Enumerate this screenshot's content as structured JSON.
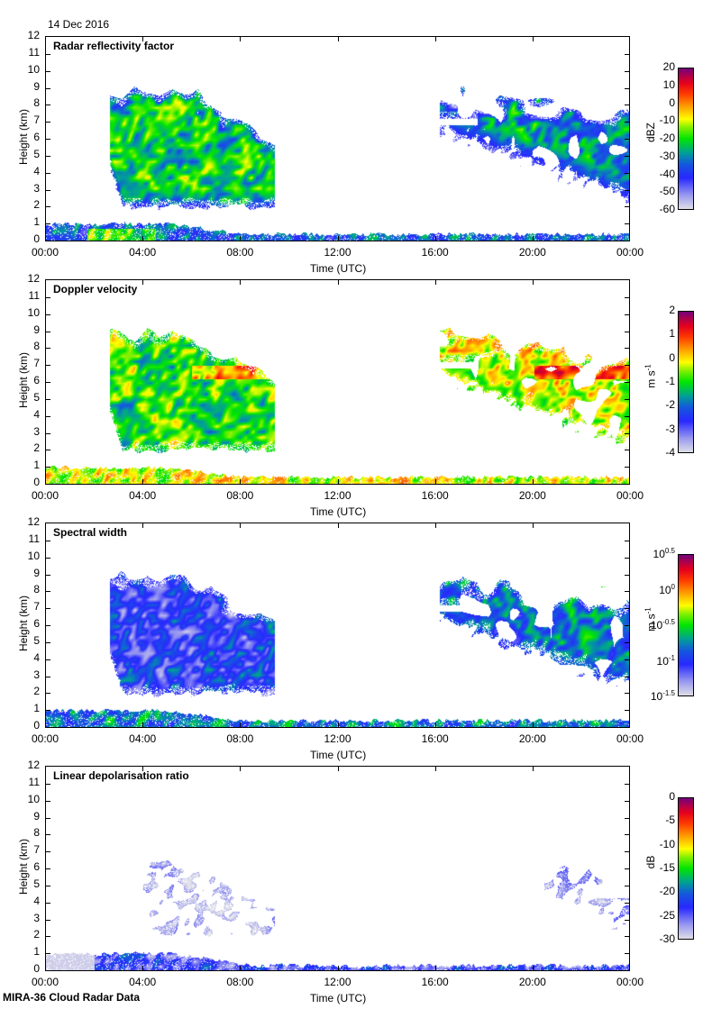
{
  "header": {
    "date": "14 Dec 2016"
  },
  "footer": {
    "title": "MIRA-36 Cloud Radar Data"
  },
  "chart_data": [
    {
      "type": "heatmap",
      "title": "Radar reflectivity factor",
      "xlabel": "Time (UTC)",
      "ylabel": "Height (km)",
      "xticks": [
        "00:00",
        "04:00",
        "08:00",
        "12:00",
        "16:00",
        "20:00",
        "00:00"
      ],
      "xlim_hours": [
        0,
        24
      ],
      "ylim": [
        0,
        12
      ],
      "yticks": [
        "0",
        "1",
        "2",
        "3",
        "4",
        "5",
        "6",
        "7",
        "8",
        "9",
        "10",
        "11",
        "12"
      ],
      "colorbar": {
        "unit": "dBZ",
        "ticks": [
          "20",
          "10",
          "0",
          "-10",
          "-20",
          "-30",
          "-40",
          "-50",
          "-60"
        ],
        "range": [
          -60,
          20
        ]
      },
      "field": "reflectivity",
      "clouds": [
        {
          "t0": 2.6,
          "t1": 9.4,
          "base": 2.0,
          "top": 8.8,
          "value_mean": -22
        },
        {
          "t0": 16.2,
          "t1": 24.0,
          "base_start": 6.5,
          "base_end": 2.5,
          "top": 8.6,
          "value_mean": -30
        }
      ],
      "boundary_layer": {
        "top_start": 1.0,
        "top_min": 0.4,
        "value_mean": -35
      }
    },
    {
      "type": "heatmap",
      "title": "Doppler velocity",
      "xlabel": "Time (UTC)",
      "ylabel": "Height (km)",
      "xticks": [
        "00:00",
        "04:00",
        "08:00",
        "12:00",
        "16:00",
        "20:00",
        "00:00"
      ],
      "xlim_hours": [
        0,
        24
      ],
      "ylim": [
        0,
        12
      ],
      "yticks": [
        "0",
        "1",
        "2",
        "3",
        "4",
        "5",
        "6",
        "7",
        "8",
        "9",
        "10",
        "11",
        "12"
      ],
      "colorbar": {
        "unit": "m s-1",
        "ticks": [
          "2",
          "1",
          "0",
          "-1",
          "-2",
          "-3",
          "-4"
        ],
        "range": [
          -4,
          2
        ]
      },
      "field": "velocity",
      "clouds": [
        {
          "t0": 2.6,
          "t1": 9.4,
          "base": 2.0,
          "top": 8.8,
          "value_mean": -0.9
        },
        {
          "t0": 16.2,
          "t1": 24.0,
          "base_start": 6.5,
          "base_end": 2.5,
          "top": 8.6,
          "value_mean": -0.3
        }
      ],
      "boundary_layer": {
        "top_start": 1.0,
        "top_min": 0.4,
        "value_mean": -0.2
      }
    },
    {
      "type": "heatmap",
      "title": "Spectral width",
      "xlabel": "Time (UTC)",
      "ylabel": "Height (km)",
      "xticks": [
        "00:00",
        "04:00",
        "08:00",
        "12:00",
        "16:00",
        "20:00",
        "00:00"
      ],
      "xlim_hours": [
        0,
        24
      ],
      "ylim": [
        0,
        12
      ],
      "yticks": [
        "0",
        "1",
        "2",
        "3",
        "4",
        "5",
        "6",
        "7",
        "8",
        "9",
        "10",
        "11",
        "12"
      ],
      "colorbar": {
        "unit": "m s-1",
        "ticks_base": "10",
        "ticks_exp": [
          "0.5",
          "0",
          "-0.5",
          "-1",
          "-1.5"
        ],
        "range_log10": [
          -1.5,
          0.5
        ]
      },
      "field": "spectral_width",
      "clouds": [
        {
          "t0": 2.6,
          "t1": 9.4,
          "base": 2.0,
          "top": 8.8,
          "value_mean": -1.05
        },
        {
          "t0": 16.2,
          "t1": 24.0,
          "base_start": 6.5,
          "base_end": 2.5,
          "top": 8.6,
          "value_mean": -0.85
        }
      ],
      "boundary_layer": {
        "top_start": 1.0,
        "top_min": 0.4,
        "value_mean": -0.8
      }
    },
    {
      "type": "heatmap",
      "title": "Linear depolarisation ratio",
      "xlabel": "Time (UTC)",
      "ylabel": "Height (km)",
      "xticks": [
        "00:00",
        "04:00",
        "08:00",
        "12:00",
        "16:00",
        "20:00",
        "00:00"
      ],
      "xlim_hours": [
        0,
        24
      ],
      "ylim": [
        0,
        12
      ],
      "yticks": [
        "0",
        "1",
        "2",
        "3",
        "4",
        "5",
        "6",
        "7",
        "8",
        "9",
        "10",
        "11",
        "12"
      ],
      "colorbar": {
        "unit": "dB",
        "ticks": [
          "0",
          "-5",
          "-10",
          "-15",
          "-20",
          "-25",
          "-30"
        ],
        "range": [
          -30,
          0
        ]
      },
      "field": "ldr",
      "clouds": [
        {
          "t0": 4.0,
          "t1": 9.4,
          "base": 2.2,
          "top": 6.3,
          "value_mean": -26
        },
        {
          "t0": 20.5,
          "t1": 24.0,
          "base_start": 4.8,
          "base_end": 2.5,
          "top": 5.8,
          "value_mean": -25
        }
      ],
      "boundary_layer": {
        "top_start": 1.0,
        "top_min": 0.3,
        "value_mean": -24
      }
    }
  ]
}
